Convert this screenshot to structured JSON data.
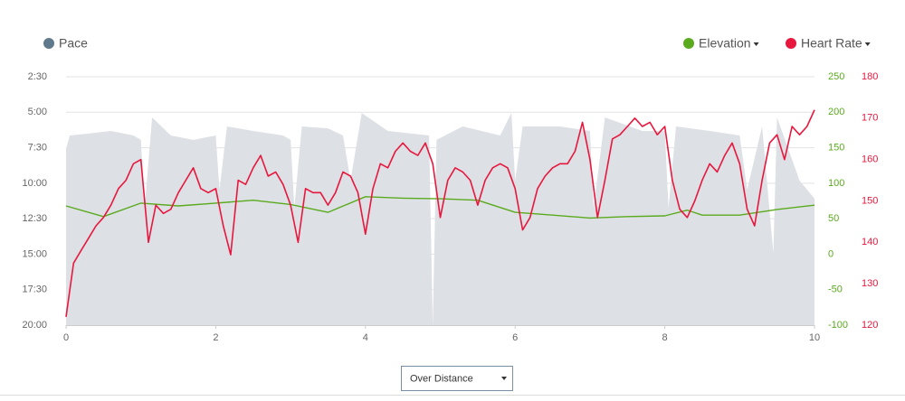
{
  "chart_data": {
    "type": "line",
    "xlim": [
      0,
      10
    ],
    "xticks": [
      0,
      2,
      4,
      6,
      8,
      10
    ],
    "ylim": [
      1200,
      150
    ],
    "yticks": [
      {
        "value": 150,
        "label": "2:30"
      },
      {
        "value": 300,
        "label": "5:00"
      },
      {
        "value": 450,
        "label": "7:30"
      },
      {
        "value": 600,
        "label": "10:00"
      },
      {
        "value": 750,
        "label": "12:30"
      },
      {
        "value": 900,
        "label": "15:00"
      },
      {
        "value": 1050,
        "label": "17:30"
      },
      {
        "value": 1200,
        "label": "20:00"
      }
    ],
    "y2lim": [
      -100,
      250
    ],
    "y2ticks": [
      250,
      200,
      150,
      100,
      50,
      0,
      -50,
      -100
    ],
    "y3lim": [
      120,
      180
    ],
    "y3ticks": [
      180,
      170,
      160,
      150,
      140,
      130,
      120
    ],
    "grid": true,
    "control": "Over Distance",
    "series": [
      {
        "name": "Pace",
        "type": "area",
        "axis": "y",
        "color": "#dde0e4",
        "legend_color": "#5f7a8c",
        "x": [
          0,
          0.05,
          0.3,
          0.6,
          0.9,
          1.0,
          1.05,
          1.15,
          1.4,
          1.7,
          2.0,
          2.05,
          2.15,
          2.5,
          2.9,
          3.0,
          3.05,
          3.15,
          3.5,
          3.7,
          3.8,
          3.95,
          4.3,
          4.85,
          4.9,
          4.95,
          5.3,
          5.8,
          5.95,
          6.0,
          6.1,
          6.6,
          7.0,
          7.05,
          7.2,
          7.7,
          8.0,
          8.05,
          8.15,
          8.6,
          9.0,
          9.1,
          9.3,
          9.45,
          9.5,
          9.8,
          10.0
        ],
        "values": [
          455,
          398,
          390,
          379,
          398,
          417,
          704,
          322,
          398,
          417,
          398,
          627,
          360,
          379,
          398,
          417,
          704,
          360,
          368,
          398,
          589,
          303,
          379,
          398,
          1200,
          417,
          360,
          398,
          303,
          589,
          360,
          360,
          379,
          704,
          322,
          379,
          379,
          704,
          360,
          379,
          398,
          627,
          360,
          895,
          322,
          589,
          665
        ]
      },
      {
        "name": "Elevation",
        "type": "line",
        "axis": "y2",
        "color": "#5aaa1e",
        "x": [
          0,
          0.5,
          1.0,
          1.5,
          2.0,
          2.5,
          3.0,
          3.5,
          4.0,
          4.5,
          5.0,
          5.5,
          6.0,
          6.5,
          7.0,
          7.5,
          8.0,
          8.3,
          8.5,
          9.0,
          9.5,
          10.0
        ],
        "values": [
          68,
          53,
          72,
          68,
          72,
          76,
          70,
          59,
          81,
          79,
          78,
          76,
          59,
          55,
          51,
          53,
          54,
          62,
          55,
          55,
          63,
          69
        ]
      },
      {
        "name": "Heart Rate",
        "type": "line",
        "axis": "y3",
        "color": "#e8173e",
        "x": [
          0,
          0.1,
          0.2,
          0.3,
          0.4,
          0.5,
          0.6,
          0.7,
          0.8,
          0.9,
          1.0,
          1.1,
          1.2,
          1.3,
          1.4,
          1.5,
          1.6,
          1.7,
          1.8,
          1.9,
          2.0,
          2.1,
          2.2,
          2.3,
          2.4,
          2.5,
          2.6,
          2.7,
          2.8,
          2.9,
          3.0,
          3.1,
          3.2,
          3.3,
          3.4,
          3.5,
          3.6,
          3.7,
          3.8,
          3.9,
          4.0,
          4.1,
          4.2,
          4.3,
          4.4,
          4.5,
          4.6,
          4.7,
          4.8,
          4.9,
          5.0,
          5.1,
          5.2,
          5.3,
          5.4,
          5.5,
          5.6,
          5.7,
          5.8,
          5.9,
          6.0,
          6.1,
          6.2,
          6.3,
          6.4,
          6.5,
          6.6,
          6.7,
          6.8,
          6.9,
          7.0,
          7.1,
          7.2,
          7.3,
          7.4,
          7.5,
          7.6,
          7.7,
          7.8,
          7.9,
          8.0,
          8.1,
          8.2,
          8.3,
          8.4,
          8.5,
          8.6,
          8.7,
          8.8,
          8.9,
          9.0,
          9.1,
          9.2,
          9.3,
          9.4,
          9.5,
          9.6,
          9.7,
          9.8,
          9.9,
          10.0
        ],
        "values": [
          122,
          135,
          138,
          141,
          144,
          146,
          149,
          153,
          155,
          159,
          160,
          140,
          149,
          147,
          148,
          152,
          155,
          158,
          153,
          152,
          153,
          144,
          137,
          155,
          154,
          158,
          161,
          156,
          157,
          154,
          149,
          140,
          153,
          152,
          152,
          149,
          152,
          157,
          156,
          152,
          142,
          153,
          159,
          158,
          162,
          164,
          162,
          161,
          164,
          159,
          146,
          155,
          158,
          157,
          155,
          149,
          155,
          158,
          159,
          158,
          153,
          143,
          146,
          153,
          156,
          158,
          159,
          159,
          162,
          169,
          160,
          146,
          155,
          165,
          166,
          168,
          170,
          168,
          169,
          166,
          168,
          155,
          148,
          146,
          150,
          155,
          159,
          157,
          161,
          164,
          159,
          148,
          144,
          155,
          164,
          166,
          160,
          168,
          166,
          168,
          172
        ]
      }
    ]
  }
}
